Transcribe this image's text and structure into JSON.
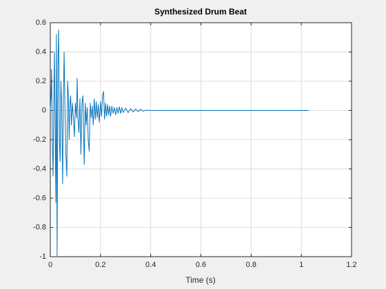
{
  "chart_data": {
    "type": "line",
    "title": "Synthesized Drum Beat",
    "xlabel": "Time (s)",
    "x": [
      0,
      0.003,
      0.005,
      0.008,
      0.011,
      0.014,
      0.016,
      0.019,
      0.022,
      0.024,
      0.027,
      0.03,
      0.033,
      0.036,
      0.039,
      0.042,
      0.045,
      0.049,
      0.052,
      0.055,
      0.058,
      0.062,
      0.066,
      0.069,
      0.072,
      0.075,
      0.078,
      0.081,
      0.084,
      0.088,
      0.092,
      0.096,
      0.1,
      0.104,
      0.107,
      0.11,
      0.114,
      0.118,
      0.122,
      0.126,
      0.13,
      0.135,
      0.139,
      0.143,
      0.147,
      0.151,
      0.155,
      0.159,
      0.163,
      0.167,
      0.171,
      0.175,
      0.179,
      0.183,
      0.187,
      0.191,
      0.195,
      0.2,
      0.204,
      0.208,
      0.212,
      0.216,
      0.22,
      0.224,
      0.228,
      0.232,
      0.236,
      0.24,
      0.245,
      0.25,
      0.255,
      0.26,
      0.265,
      0.27,
      0.275,
      0.28,
      0.285,
      0.29,
      0.3,
      0.31,
      0.32,
      0.33,
      0.34,
      0.35,
      0.36,
      0.37,
      0.38,
      0.4,
      1.03
    ],
    "values": [
      0,
      0.1,
      0.28,
      -0.2,
      -0.45,
      0.1,
      0.4,
      -0.1,
      -0.63,
      0.52,
      -1.0,
      0.3,
      0.55,
      -0.2,
      -0.35,
      0.2,
      0.05,
      -0.5,
      0.1,
      0.4,
      0.05,
      -0.3,
      -0.45,
      0.2,
      0.1,
      -0.2,
      0.05,
      0.1,
      -0.1,
      0.05,
      -0.05,
      -0.18,
      0.05,
      -0.05,
      0.22,
      -0.05,
      -0.15,
      0.08,
      -0.3,
      0.05,
      0.1,
      -0.37,
      0.05,
      -0.1,
      0.02,
      -0.2,
      -0.28,
      0.05,
      -0.05,
      0.03,
      -0.1,
      0.08,
      -0.06,
      0.06,
      -0.05,
      0.04,
      -0.08,
      0.06,
      -0.04,
      0.1,
      0.13,
      -0.06,
      0.05,
      -0.04,
      0.04,
      -0.03,
      0.03,
      -0.04,
      0.03,
      -0.02,
      0.02,
      -0.03,
      0.02,
      -0.02,
      0.025,
      -0.02,
      0.02,
      -0.015,
      0.015,
      -0.015,
      0.012,
      -0.01,
      0.01,
      -0.008,
      0.008,
      -0.005,
      0.002,
      0,
      0
    ],
    "color": "#0072bd",
    "xlim": [
      0,
      1.2
    ],
    "xticks": [
      0,
      0.2,
      0.4,
      0.6,
      0.8,
      1,
      1.2
    ],
    "ylim": [
      -1,
      0.6
    ],
    "yticks": [
      -1,
      -0.8,
      -0.6,
      -0.4,
      -0.2,
      0,
      0.2,
      0.4,
      0.6
    ],
    "grid": true
  }
}
